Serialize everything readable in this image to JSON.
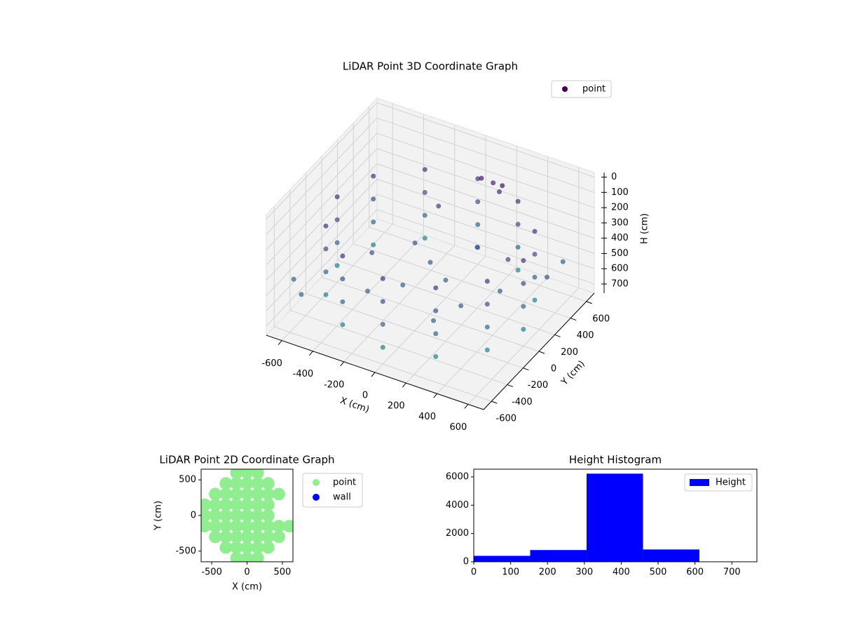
{
  "chart_data": [
    {
      "type": "scatter3d",
      "title": "LiDAR Point 3D Coordinate Graph",
      "xlabel": "X (cm)",
      "ylabel": "Y (cm)",
      "zlabel": "H (cm)",
      "xlim": [
        -700,
        700
      ],
      "ylim": [
        -700,
        700
      ],
      "zlim": [
        -30,
        760
      ],
      "z_inverted": true,
      "xticks": [
        -600,
        -400,
        -200,
        0,
        200,
        400,
        600
      ],
      "yticks": [
        -600,
        -400,
        -200,
        0,
        200,
        400,
        600
      ],
      "zticks": [
        0,
        100,
        200,
        300,
        400,
        500,
        600,
        700
      ],
      "colormap": "viridis",
      "grid": true,
      "legend_loc": "upper right",
      "series": [
        {
          "name": "point",
          "x": [
            600,
            520,
            300,
            0,
            -300,
            -520,
            -600,
            -520,
            -300,
            0,
            300,
            520,
            600,
            520,
            300,
            0,
            -300,
            -520,
            -600,
            -520,
            -300,
            0,
            300,
            520,
            600,
            520,
            300,
            0,
            -300,
            -520,
            -600,
            -520,
            -300,
            0,
            300,
            520,
            600,
            520,
            300,
            0,
            -300,
            -520,
            -600,
            -520,
            -300,
            0,
            300,
            520,
            0,
            -150,
            150,
            -300,
            200,
            100,
            150,
            250,
            200,
            -100,
            350,
            450,
            -50,
            250,
            -500,
            -600,
            600,
            650,
            500,
            -200
          ],
          "y": [
            0,
            300,
            520,
            600,
            520,
            300,
            0,
            -300,
            -520,
            -600,
            -520,
            -300,
            0,
            300,
            520,
            600,
            520,
            300,
            0,
            -300,
            -520,
            -600,
            -520,
            -300,
            0,
            300,
            520,
            600,
            520,
            300,
            0,
            -300,
            -520,
            -600,
            -520,
            -300,
            0,
            300,
            520,
            600,
            520,
            300,
            0,
            -300,
            -520,
            -600,
            -520,
            -300,
            0,
            100,
            -100,
            -150,
            200,
            450,
            500,
            420,
            480,
            300,
            -300,
            100,
            -250,
            -450,
            -650,
            -550,
            500,
            200,
            -100,
            -400
          ],
          "z": [
            200,
            200,
            200,
            200,
            200,
            200,
            200,
            200,
            200,
            200,
            200,
            200,
            350,
            350,
            350,
            350,
            350,
            350,
            350,
            350,
            350,
            350,
            350,
            350,
            500,
            500,
            500,
            500,
            500,
            500,
            500,
            500,
            500,
            500,
            500,
            500,
            650,
            650,
            650,
            650,
            650,
            650,
            650,
            650,
            650,
            650,
            650,
            650,
            420,
            400,
            430,
            380,
            360,
            80,
            120,
            60,
            150,
            250,
            420,
            300,
            450,
            470,
            450,
            440,
            480,
            400,
            380,
            460
          ]
        }
      ]
    },
    {
      "type": "scatter",
      "title": "LiDAR Point 2D Coordinate Graph",
      "xlabel": "X (cm)",
      "ylabel": "Y (cm)",
      "xlim": [
        -650,
        650
      ],
      "ylim": [
        -650,
        650
      ],
      "xticks": [
        -500,
        0,
        500
      ],
      "yticks": [
        -500,
        0,
        500
      ],
      "legend_loc": "outside upper right",
      "series": [
        {
          "name": "point",
          "color": "#90ee90",
          "x": [
            -150,
            0,
            150,
            -300,
            -150,
            0,
            150,
            300,
            -450,
            -300,
            -150,
            0,
            150,
            300,
            450,
            -600,
            -450,
            -300,
            -150,
            0,
            150,
            300,
            -600,
            -450,
            -300,
            -150,
            0,
            150,
            300,
            -600,
            -450,
            -300,
            -150,
            0,
            150,
            300,
            450,
            600,
            -450,
            -300,
            -150,
            0,
            150,
            300,
            450,
            -300,
            -150,
            0,
            150,
            300,
            -150,
            0,
            150
          ],
          "y": [
            600,
            600,
            600,
            450,
            450,
            450,
            450,
            450,
            300,
            300,
            300,
            300,
            300,
            300,
            300,
            150,
            150,
            150,
            150,
            150,
            150,
            150,
            0,
            0,
            0,
            0,
            0,
            0,
            0,
            -150,
            -150,
            -150,
            -150,
            -150,
            -150,
            -150,
            -150,
            -150,
            -300,
            -300,
            -300,
            -300,
            -300,
            -300,
            -300,
            -450,
            -450,
            -450,
            -450,
            -450,
            -600,
            -600,
            -600
          ]
        },
        {
          "name": "wall",
          "color": "#0000ff",
          "x": [],
          "y": []
        }
      ]
    },
    {
      "type": "histogram",
      "title": "Height Histogram",
      "bins": [
        0,
        153,
        306,
        459,
        612,
        765
      ],
      "xlim": [
        0,
        768
      ],
      "ylim": [
        0,
        6545
      ],
      "xticks": [
        0,
        100,
        200,
        300,
        400,
        500,
        600,
        700
      ],
      "yticks": [
        0,
        2000,
        4000,
        6000
      ],
      "legend_loc": "upper right",
      "series": [
        {
          "name": "Height",
          "color": "#0000ff",
          "values": [
            420,
            830,
            6230,
            870,
            0
          ]
        }
      ]
    }
  ]
}
